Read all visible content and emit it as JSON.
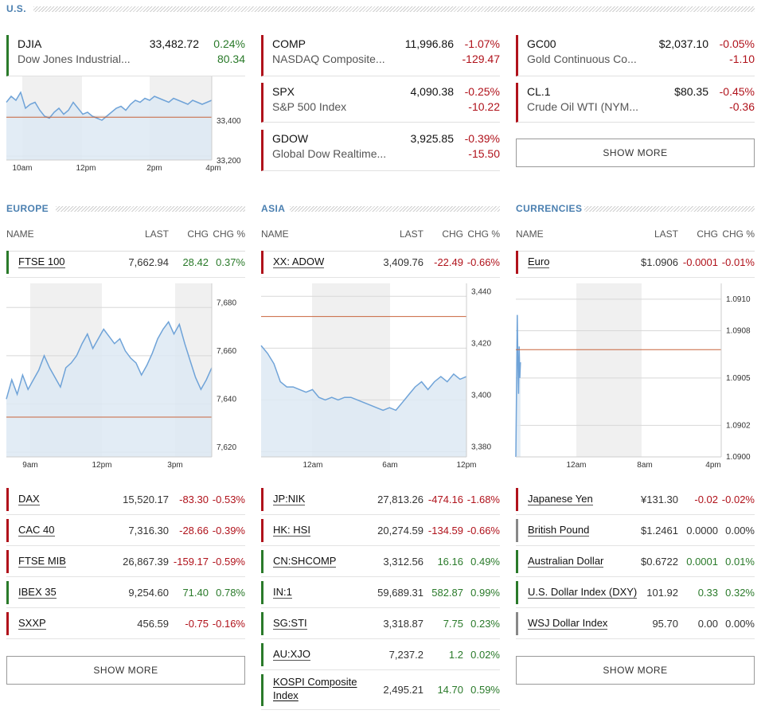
{
  "us": {
    "title": "U.S.",
    "cards": [
      {
        "sym": "DJIA",
        "name": "Dow Jones Industrial...",
        "last": "33,482.72",
        "pct": "0.24%",
        "chg": "80.34",
        "dir": "pos"
      },
      {
        "sym": "COMP",
        "name": "NASDAQ Composite...",
        "last": "11,996.86",
        "pct": "-1.07%",
        "chg": "-129.47",
        "dir": "neg"
      },
      {
        "sym": "SPX",
        "name": "S&P 500 Index",
        "last": "4,090.38",
        "pct": "-0.25%",
        "chg": "-10.22",
        "dir": "neg"
      },
      {
        "sym": "GDOW",
        "name": "Global Dow Realtime...",
        "last": "3,925.85",
        "pct": "-0.39%",
        "chg": "-15.50",
        "dir": "neg"
      },
      {
        "sym": "GC00",
        "name": "Gold Continuous Co...",
        "last": "$2,037.10",
        "pct": "-0.05%",
        "chg": "-1.10",
        "dir": "neg"
      },
      {
        "sym": "CL.1",
        "name": "Crude Oil WTI (NYM...",
        "last": "$80.35",
        "pct": "-0.45%",
        "chg": "-0.36",
        "dir": "neg"
      }
    ],
    "show_more": "SHOW MORE"
  },
  "europe": {
    "title": "EUROPE",
    "headers": {
      "name": "NAME",
      "last": "LAST",
      "chg": "CHG",
      "pct": "CHG %"
    },
    "top": {
      "name": "FTSE 100",
      "last": "7,662.94",
      "chg": "28.42",
      "pct": "0.37%",
      "dir": "pos"
    },
    "rows": [
      {
        "name": "DAX",
        "last": "15,520.17",
        "chg": "-83.30",
        "pct": "-0.53%",
        "dir": "neg"
      },
      {
        "name": "CAC 40",
        "last": "7,316.30",
        "chg": "-28.66",
        "pct": "-0.39%",
        "dir": "neg"
      },
      {
        "name": "FTSE MIB",
        "last": "26,867.39",
        "chg": "-159.17",
        "pct": "-0.59%",
        "dir": "neg"
      },
      {
        "name": "IBEX 35",
        "last": "9,254.60",
        "chg": "71.40",
        "pct": "0.78%",
        "dir": "pos"
      },
      {
        "name": "SXXP",
        "last": "456.59",
        "chg": "-0.75",
        "pct": "-0.16%",
        "dir": "neg"
      }
    ],
    "show_more": "SHOW MORE"
  },
  "asia": {
    "title": "ASIA",
    "headers": {
      "name": "NAME",
      "last": "LAST",
      "chg": "CHG",
      "pct": "CHG %"
    },
    "top": {
      "name": "XX: ADOW",
      "last": "3,409.76",
      "chg": "-22.49",
      "pct": "-0.66%",
      "dir": "neg"
    },
    "rows": [
      {
        "name": "JP:NIK",
        "last": "27,813.26",
        "chg": "-474.16",
        "pct": "-1.68%",
        "dir": "neg"
      },
      {
        "name": "HK: HSI",
        "last": "20,274.59",
        "chg": "-134.59",
        "pct": "-0.66%",
        "dir": "neg"
      },
      {
        "name": "CN:SHCOMP",
        "last": "3,312.56",
        "chg": "16.16",
        "pct": "0.49%",
        "dir": "pos"
      },
      {
        "name": "IN:1",
        "last": "59,689.31",
        "chg": "582.87",
        "pct": "0.99%",
        "dir": "pos"
      },
      {
        "name": "SG:STI",
        "last": "3,318.87",
        "chg": "7.75",
        "pct": "0.23%",
        "dir": "pos"
      },
      {
        "name": "AU:XJO",
        "last": "7,237.2",
        "chg": "1.2",
        "pct": "0.02%",
        "dir": "pos"
      },
      {
        "name": "KOSPI Composite Index",
        "last": "2,495.21",
        "chg": "14.70",
        "pct": "0.59%",
        "dir": "pos"
      }
    ]
  },
  "currencies": {
    "title": "CURRENCIES",
    "headers": {
      "name": "NAME",
      "last": "LAST",
      "chg": "CHG",
      "pct": "CHG %"
    },
    "top": {
      "name": "Euro",
      "last": "$1.0906",
      "chg": "-0.0001",
      "pct": "-0.01%",
      "dir": "neg"
    },
    "rows": [
      {
        "name": "Japanese Yen",
        "last": "¥131.30",
        "chg": "-0.02",
        "pct": "-0.02%",
        "dir": "neg"
      },
      {
        "name": "British Pound",
        "last": "$1.2461",
        "chg": "0.0000",
        "pct": "0.00%",
        "dir": "zero"
      },
      {
        "name": "Australian Dollar",
        "last": "$0.6722",
        "chg": "0.0001",
        "pct": "0.01%",
        "dir": "pos"
      },
      {
        "name": "U.S. Dollar Index (DXY)",
        "last": "101.92",
        "chg": "0.33",
        "pct": "0.32%",
        "dir": "pos"
      },
      {
        "name": "WSJ Dollar Index",
        "last": "95.70",
        "chg": "0.00",
        "pct": "0.00%",
        "dir": "zero"
      }
    ],
    "show_more": "SHOW MORE"
  },
  "colors": {
    "line": "#6fa3d8",
    "area": "#dde9f3",
    "shade": "#f0f0f0",
    "ref": "#c8643c",
    "grid": "#d8d8d8"
  },
  "chart_data": [
    {
      "id": "djia",
      "type": "line",
      "xticks": [
        "10am",
        "12pm",
        "2pm",
        "4pm"
      ],
      "yticks": [
        33400,
        33200
      ],
      "ylim": [
        33180,
        33600
      ],
      "reference": 33395,
      "y": [
        33470,
        33500,
        33480,
        33520,
        33440,
        33460,
        33470,
        33430,
        33400,
        33390,
        33420,
        33440,
        33410,
        33430,
        33470,
        33440,
        33410,
        33420,
        33400,
        33390,
        33380,
        33400,
        33420,
        33440,
        33450,
        33430,
        33460,
        33480,
        33470,
        33490,
        33480,
        33500,
        33490,
        33480,
        33470,
        33490,
        33480,
        33470,
        33460,
        33480,
        33470,
        33460,
        33470,
        33480
      ]
    },
    {
      "id": "ftse",
      "type": "line",
      "xticks": [
        "9am",
        "12pm",
        "3pm"
      ],
      "yticks": [
        7680,
        7660,
        7640,
        7620
      ],
      "ylim": [
        7618,
        7690
      ],
      "reference": 7634.5,
      "y": [
        7642,
        7650,
        7644,
        7652,
        7646,
        7650,
        7654,
        7660,
        7655,
        7651,
        7647,
        7655,
        7657,
        7660,
        7665,
        7669,
        7663,
        7667,
        7671,
        7668,
        7665,
        7667,
        7662,
        7659,
        7657,
        7652,
        7656,
        7661,
        7667,
        7671,
        7674,
        7669,
        7673,
        7665,
        7658,
        7651,
        7646,
        7650,
        7655
      ]
    },
    {
      "id": "adow",
      "type": "line",
      "xticks": [
        "12am",
        "6am",
        "12pm"
      ],
      "yticks": [
        3440,
        3420,
        3400,
        3380
      ],
      "ylim": [
        3378,
        3445
      ],
      "reference": 3432.2,
      "y": [
        3421,
        3418,
        3414,
        3407,
        3405,
        3405,
        3404,
        3403,
        3404,
        3401,
        3400,
        3401,
        3400,
        3401,
        3401,
        3400,
        3399,
        3398,
        3397,
        3396,
        3397,
        3396,
        3399,
        3402,
        3405,
        3407,
        3404,
        3407,
        3409,
        3407,
        3410,
        3408,
        3409
      ]
    },
    {
      "id": "euro",
      "type": "line",
      "xticks": [
        "12am",
        "8am",
        "4pm"
      ],
      "yticks": [
        1.091,
        1.0908,
        1.0905,
        1.0902,
        1.09
      ],
      "ylim": [
        1.09,
        1.0911
      ],
      "reference": 1.09068,
      "y": [
        1.09,
        1.0909,
        1.0906,
        1.0904,
        1.0907,
        1.0905,
        1.0906
      ]
    }
  ]
}
